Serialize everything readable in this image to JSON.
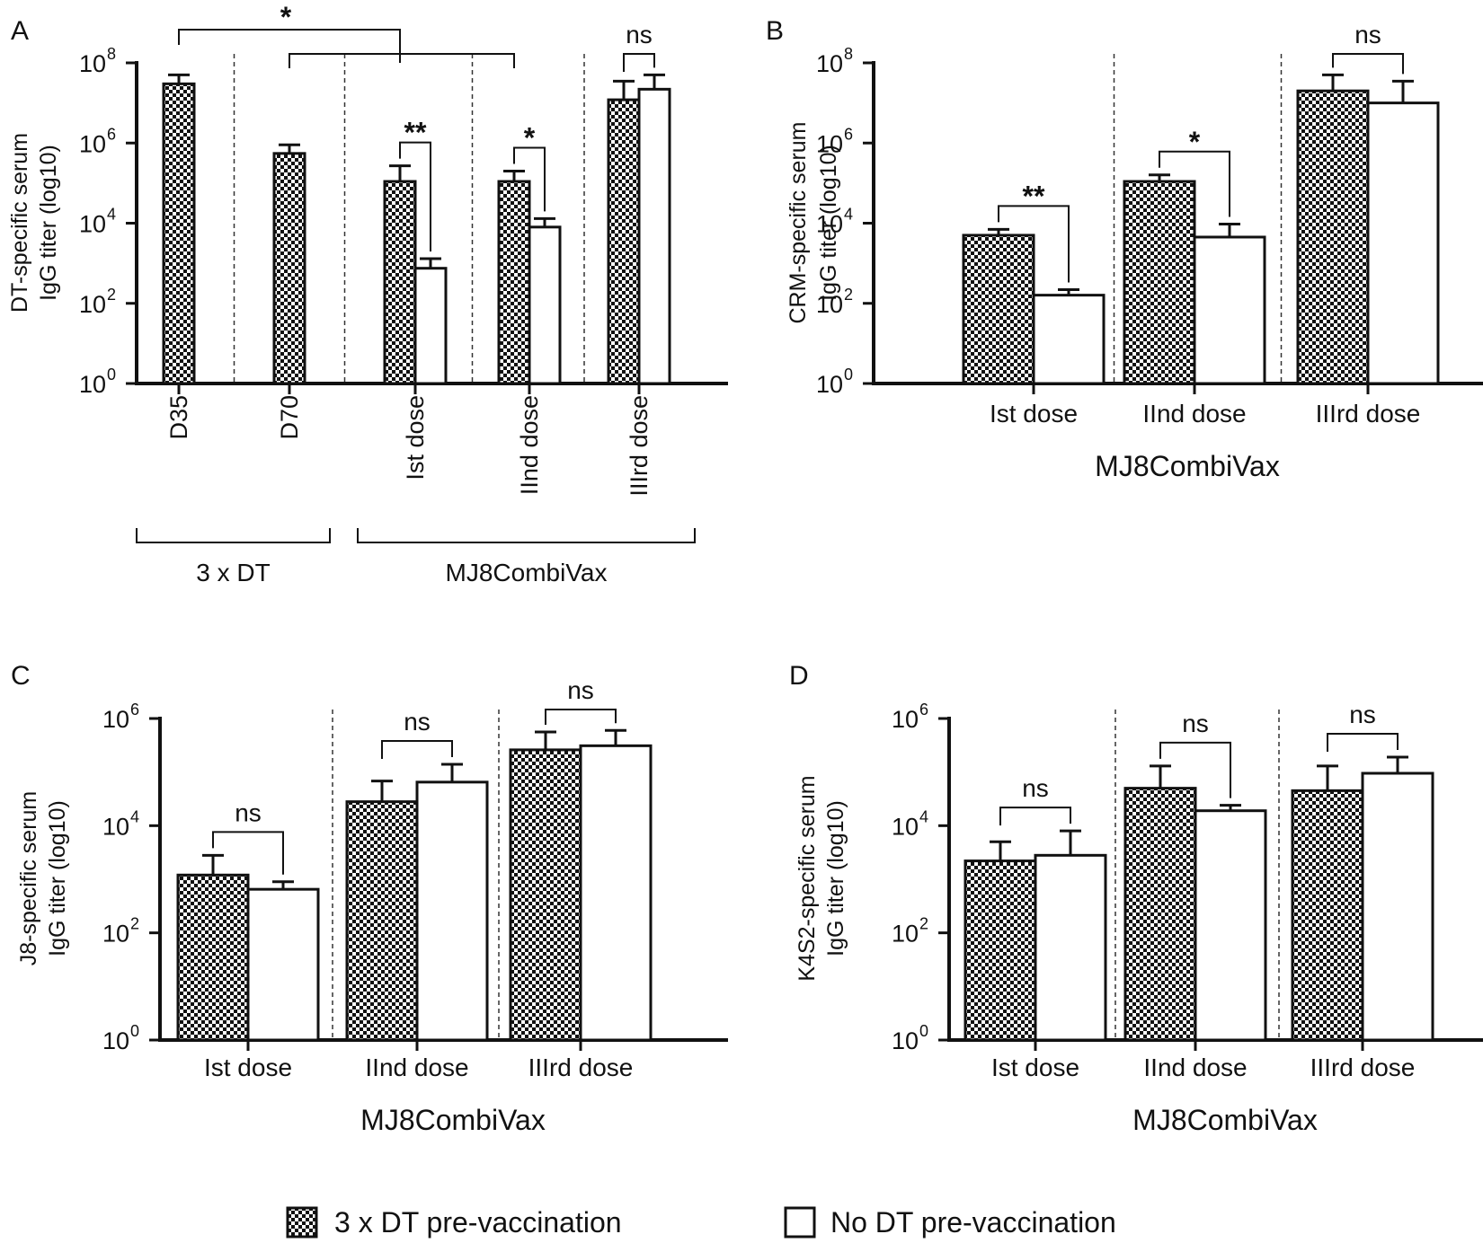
{
  "legend": {
    "checkered_label": "3 x DT pre-vaccination",
    "open_label": "No DT pre-vaccination"
  },
  "chart_data": [
    {
      "panel": "A",
      "type": "bar",
      "yscale": "log10",
      "ylabel_line1": "DT-specific serum",
      "ylabel_line2": "IgG titer  (log10)",
      "yticks": [
        0,
        2,
        4,
        6,
        8
      ],
      "ylim_exp": [
        0,
        8
      ],
      "xlabel": "",
      "tick_rotation": "vertical",
      "groups": [
        {
          "label": "D35",
          "bars": [
            {
              "series": "3 x DT pre-vaccination",
              "value": 30000000,
              "error_top": 50000000
            }
          ]
        },
        {
          "label": "D70",
          "bars": [
            {
              "series": "3 x DT pre-vaccination",
              "value": 550000,
              "error_top": 900000
            }
          ]
        },
        {
          "label": "Ist dose",
          "bars": [
            {
              "series": "3 x DT pre-vaccination",
              "value": 110000,
              "error_top": 270000
            },
            {
              "series": "No DT pre-vaccination",
              "value": 750,
              "error_top": 1300
            }
          ]
        },
        {
          "label": "IInd dose",
          "bars": [
            {
              "series": "3 x DT pre-vaccination",
              "value": 110000,
              "error_top": 200000
            },
            {
              "series": "No DT pre-vaccination",
              "value": 8000,
              "error_top": 13000
            }
          ]
        },
        {
          "label": "IIIrd dose",
          "bars": [
            {
              "series": "3 x DT pre-vaccination",
              "value": 12000000,
              "error_top": 35000000
            },
            {
              "series": "No DT pre-vaccination",
              "value": 22000000,
              "error_top": 50000000
            }
          ]
        }
      ],
      "brackets": [
        {
          "label": "**",
          "from": [
            2,
            0
          ],
          "to": [
            2,
            1
          ]
        },
        {
          "label": "*",
          "from": [
            3,
            0
          ],
          "to": [
            3,
            1
          ]
        },
        {
          "label": "ns",
          "from": [
            4,
            0
          ],
          "to": [
            4,
            1
          ]
        }
      ],
      "comparisons": [
        {
          "label": "*"
        }
      ],
      "group_labels": [
        {
          "label": "3 x DT",
          "groups": [
            0,
            1
          ]
        },
        {
          "label": "MJ8CombiVax",
          "groups": [
            2,
            4
          ]
        }
      ]
    },
    {
      "panel": "B",
      "type": "bar",
      "yscale": "log10",
      "ylabel_line1": "CRM-specific serum",
      "ylabel_line2": "IgG titer (log10)",
      "yticks": [
        0,
        2,
        4,
        6,
        8
      ],
      "ylim_exp": [
        0,
        8
      ],
      "xlabel": "MJ8CombiVax",
      "tick_rotation": "horizontal",
      "groups": [
        {
          "label": "Ist dose",
          "bars": [
            {
              "series": "3 x DT pre-vaccination",
              "value": 5000,
              "error_top": 7000
            },
            {
              "series": "No DT pre-vaccination",
              "value": 160,
              "error_top": 220
            }
          ]
        },
        {
          "label": "IInd dose",
          "bars": [
            {
              "series": "3 x DT pre-vaccination",
              "value": 110000,
              "error_top": 160000
            },
            {
              "series": "No DT pre-vaccination",
              "value": 4500,
              "error_top": 9500
            }
          ]
        },
        {
          "label": "IIIrd dose",
          "bars": [
            {
              "series": "3 x DT pre-vaccination",
              "value": 20000000,
              "error_top": 50000000
            },
            {
              "series": "No DT pre-vaccination",
              "value": 10000000,
              "error_top": 35000000
            }
          ]
        }
      ],
      "brackets": [
        {
          "label": "**",
          "from": [
            0,
            0
          ],
          "to": [
            0,
            1
          ]
        },
        {
          "label": "*",
          "from": [
            1,
            0
          ],
          "to": [
            1,
            1
          ]
        },
        {
          "label": "ns",
          "from": [
            2,
            0
          ],
          "to": [
            2,
            1
          ]
        }
      ]
    },
    {
      "panel": "C",
      "type": "bar",
      "yscale": "log10",
      "ylabel_line1": "J8-specific serum",
      "ylabel_line2": "IgG titer (log10)",
      "yticks": [
        0,
        2,
        4,
        6
      ],
      "ylim_exp": [
        0,
        6
      ],
      "xlabel": "MJ8CombiVax",
      "tick_rotation": "horizontal",
      "groups": [
        {
          "label": "Ist dose",
          "bars": [
            {
              "series": "3 x DT pre-vaccination",
              "value": 1200,
              "error_top": 2800
            },
            {
              "series": "No DT pre-vaccination",
              "value": 650,
              "error_top": 900
            }
          ]
        },
        {
          "label": "IInd dose",
          "bars": [
            {
              "series": "3 x DT pre-vaccination",
              "value": 28000,
              "error_top": 68000
            },
            {
              "series": "No DT pre-vaccination",
              "value": 65000,
              "error_top": 140000
            }
          ]
        },
        {
          "label": "IIIrd dose",
          "bars": [
            {
              "series": "3 x DT pre-vaccination",
              "value": 260000,
              "error_top": 560000
            },
            {
              "series": "No DT pre-vaccination",
              "value": 310000,
              "error_top": 600000
            }
          ]
        }
      ],
      "brackets": [
        {
          "label": "ns",
          "from": [
            0,
            0
          ],
          "to": [
            0,
            1
          ]
        },
        {
          "label": "ns",
          "from": [
            1,
            0
          ],
          "to": [
            1,
            1
          ]
        },
        {
          "label": "ns",
          "from": [
            2,
            0
          ],
          "to": [
            2,
            1
          ]
        }
      ]
    },
    {
      "panel": "D",
      "type": "bar",
      "yscale": "log10",
      "ylabel_line1": "K4S2-specific serum",
      "ylabel_line2": "IgG titer (log10)",
      "yticks": [
        0,
        2,
        4,
        6
      ],
      "ylim_exp": [
        0,
        6
      ],
      "xlabel": "MJ8CombiVax",
      "tick_rotation": "horizontal",
      "groups": [
        {
          "label": "Ist dose",
          "bars": [
            {
              "series": "3 x DT pre-vaccination",
              "value": 2200,
              "error_top": 5000
            },
            {
              "series": "No DT pre-vaccination",
              "value": 2800,
              "error_top": 8000
            }
          ]
        },
        {
          "label": "IInd dose",
          "bars": [
            {
              "series": "3 x DT pre-vaccination",
              "value": 50000,
              "error_top": 130000
            },
            {
              "series": "No DT pre-vaccination",
              "value": 19000,
              "error_top": 24000
            }
          ]
        },
        {
          "label": "IIIrd dose",
          "bars": [
            {
              "series": "3 x DT pre-vaccination",
              "value": 45000,
              "error_top": 130000
            },
            {
              "series": "No DT pre-vaccination",
              "value": 95000,
              "error_top": 190000
            }
          ]
        }
      ],
      "brackets": [
        {
          "label": "ns",
          "from": [
            0,
            0
          ],
          "to": [
            0,
            1
          ]
        },
        {
          "label": "ns",
          "from": [
            1,
            0
          ],
          "to": [
            1,
            1
          ]
        },
        {
          "label": "ns",
          "from": [
            2,
            0
          ],
          "to": [
            2,
            1
          ]
        }
      ]
    }
  ]
}
